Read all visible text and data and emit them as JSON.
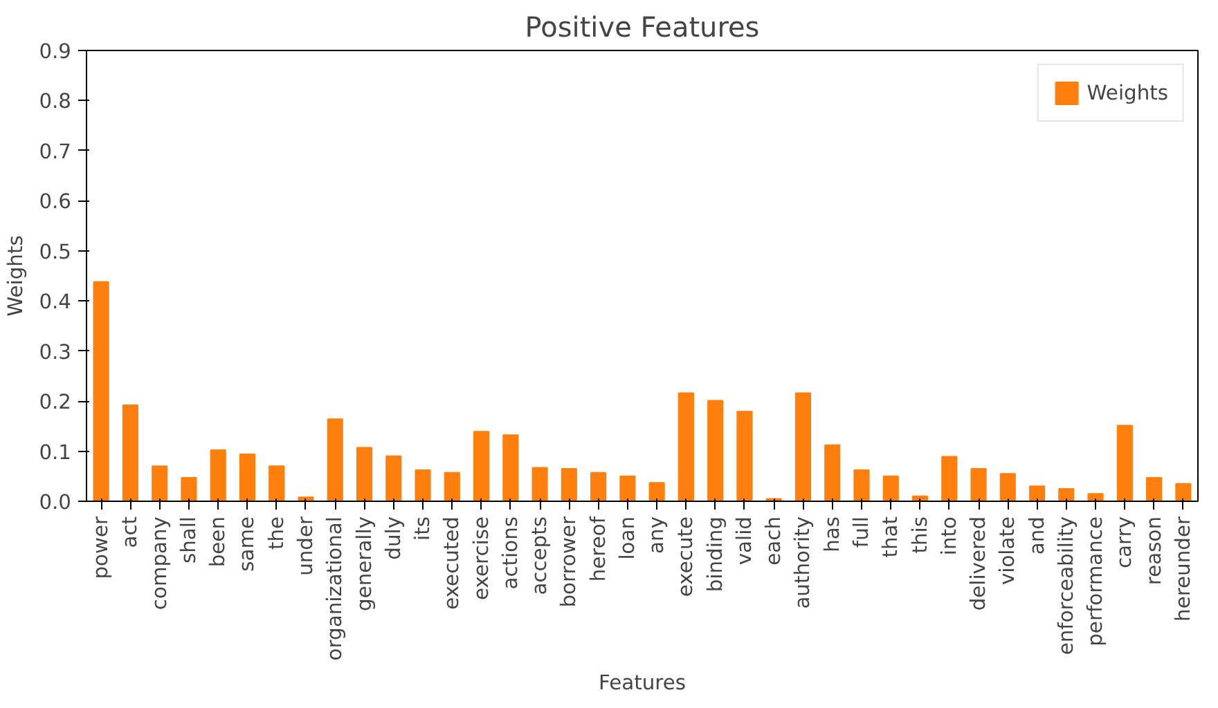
{
  "chart_data": {
    "type": "bar",
    "title": "Positive Features",
    "xlabel": "Features",
    "ylabel": "Weights",
    "categories": [
      "power",
      "act",
      "company",
      "shall",
      "been",
      "same",
      "the",
      "under",
      "organizational",
      "generally",
      "duly",
      "its",
      "executed",
      "exercise",
      "actions",
      "accepts",
      "borrower",
      "hereof",
      "loan",
      "any",
      "execute",
      "binding",
      "valid",
      "each",
      "authority",
      "has",
      "full",
      "that",
      "this",
      "into",
      "delivered",
      "violate",
      "and",
      "enforceability",
      "performance",
      "carry",
      "reason",
      "hereunder"
    ],
    "series": [
      {
        "name": "Weights",
        "color": "#ff7f0e",
        "values": [
          0.438,
          0.192,
          0.07,
          0.047,
          0.102,
          0.094,
          0.07,
          0.008,
          0.164,
          0.107,
          0.09,
          0.062,
          0.057,
          0.139,
          0.132,
          0.067,
          0.065,
          0.057,
          0.05,
          0.037,
          0.216,
          0.201,
          0.179,
          0.005,
          0.216,
          0.112,
          0.062,
          0.05,
          0.01,
          0.089,
          0.065,
          0.055,
          0.03,
          0.025,
          0.015,
          0.151,
          0.047,
          0.035
        ]
      }
    ],
    "ylim": [
      0,
      0.9
    ],
    "yticks": [
      {
        "value": 0,
        "label": "0.0"
      },
      0.1,
      0.2,
      0.3,
      0.4,
      0.5,
      0.6,
      0.7,
      0.8,
      0.9
    ],
    "grid": false,
    "legend": "top right"
  }
}
